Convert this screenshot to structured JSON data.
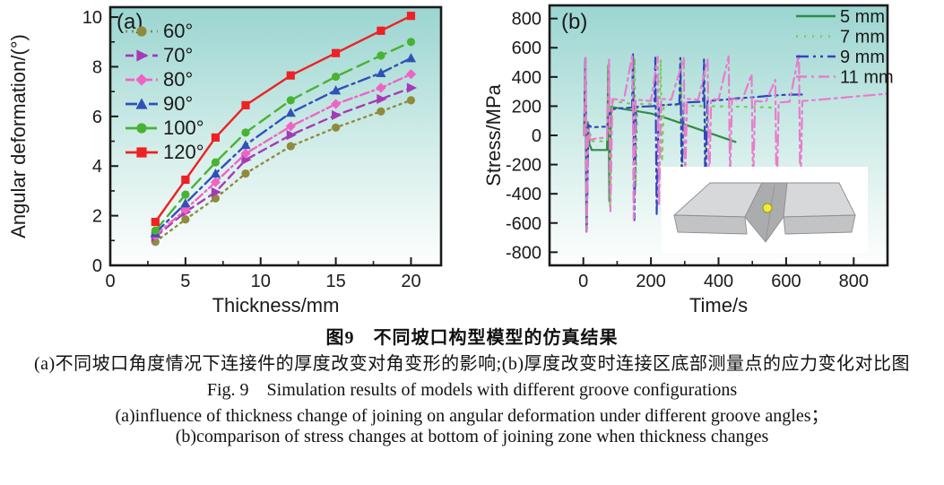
{
  "figure": {
    "caption_zh_title": "图9　不同坡口构型模型的仿真结果",
    "caption_zh_sub": "(a)不同坡口角度情况下连接件的厚度改变对角变形的影响;(b)厚度改变时连接区底部测量点的应力变化对比图",
    "caption_en_title": "Fig. 9　Simulation results of models with different groove configurations",
    "caption_en_a": "(a)influence of thickness change of joining on angular deformation under different groove angles；",
    "caption_en_b": "(b)comparison of stress changes at bottom of joining zone when thickness changes"
  },
  "chart_data": [
    {
      "type": "line",
      "panel_label": "(a)",
      "xlabel": "Thickness/mm",
      "ylabel": "Angular deformation/(°)",
      "xlim": [
        0,
        22
      ],
      "ylim": [
        0,
        10.4
      ],
      "xticks": [
        0,
        5,
        10,
        15,
        20
      ],
      "yticks": [
        0,
        2,
        4,
        6,
        8,
        10
      ],
      "x_minor": 2.5,
      "y_minor": 1,
      "grid": false,
      "legend_position": "top-left",
      "background_gradient": {
        "top": "#9bd5d1",
        "mid": "#d7efeb",
        "bottom": "#fefefe"
      },
      "x": [
        3,
        5,
        7,
        9,
        12,
        15,
        18,
        20
      ],
      "series": [
        {
          "name": "60°",
          "color": "#8f8b3e",
          "dash": "2 5",
          "marker": "circle",
          "values": [
            0.95,
            1.85,
            2.7,
            3.7,
            4.8,
            5.55,
            6.2,
            6.65
          ]
        },
        {
          "name": "70°",
          "color": "#a53ab8",
          "dash": "9 6",
          "marker": "triangle-right",
          "values": [
            1.15,
            2.15,
            2.95,
            4.25,
            5.25,
            6.05,
            6.7,
            7.15
          ]
        },
        {
          "name": "80°",
          "color": "#ef63c5",
          "dash": "10 4 2 4",
          "marker": "diamond",
          "values": [
            1.2,
            2.25,
            3.35,
            4.5,
            5.6,
            6.5,
            7.15,
            7.7
          ]
        },
        {
          "name": "90°",
          "color": "#2f52b7",
          "dash": "13 5 3 5",
          "marker": "triangle-up",
          "values": [
            1.3,
            2.5,
            3.7,
            4.85,
            6.15,
            7.05,
            7.75,
            8.35
          ]
        },
        {
          "name": "100°",
          "color": "#49b234",
          "dash": "14 7",
          "marker": "circle",
          "values": [
            1.4,
            2.85,
            4.15,
            5.35,
            6.65,
            7.6,
            8.45,
            9.0
          ]
        },
        {
          "name": "120°",
          "color": "#ee2124",
          "dash": "",
          "marker": "square",
          "values": [
            1.75,
            3.45,
            5.15,
            6.45,
            7.65,
            8.55,
            9.45,
            10.05
          ]
        }
      ]
    },
    {
      "type": "line",
      "panel_label": "(b)",
      "xlabel": "Time/s",
      "ylabel": "Stress/MPa",
      "xlim": [
        -100,
        900
      ],
      "ylim": [
        -890,
        890
      ],
      "xticks": [
        0,
        200,
        400,
        600,
        800
      ],
      "yticks": [
        -800,
        -600,
        -400,
        -200,
        0,
        200,
        400,
        600,
        800
      ],
      "x_minor": 100,
      "grid": false,
      "legend_position": "top-right",
      "background_gradient": {
        "top": "#9bd5d1",
        "mid": "#d7efeb",
        "bottom": "#fefefe"
      },
      "inset": "groove-model-with-measure-point",
      "series": [
        {
          "name": "5 mm",
          "color": "#2f8b44",
          "dash": "",
          "marker": "",
          "points": [
            [
              2,
              0
            ],
            [
              6,
              530
            ],
            [
              9,
              -660
            ],
            [
              13,
              90
            ],
            [
              18,
              -60
            ],
            [
              25,
              -100
            ],
            [
              70,
              -100
            ],
            [
              74,
              480
            ],
            [
              77,
              -450
            ],
            [
              82,
              195
            ],
            [
              120,
              180
            ],
            [
              160,
              165
            ],
            [
              200,
              150
            ],
            [
              250,
              115
            ],
            [
              300,
              75
            ],
            [
              350,
              35
            ],
            [
              400,
              -5
            ],
            [
              450,
              -45
            ]
          ]
        },
        {
          "name": "7 mm",
          "color": "#77cd57",
          "dash": "2 7",
          "marker": "",
          "points": [
            [
              3,
              0
            ],
            [
              7,
              520
            ],
            [
              10,
              -640
            ],
            [
              15,
              60
            ],
            [
              25,
              -40
            ],
            [
              70,
              -40
            ],
            [
              76,
              500
            ],
            [
              79,
              -500
            ],
            [
              85,
              235
            ],
            [
              148,
              215
            ],
            [
              152,
              530
            ],
            [
              155,
              -350
            ],
            [
              160,
              215
            ],
            [
              226,
              215
            ],
            [
              229,
              520
            ],
            [
              233,
              -180
            ],
            [
              238,
              210
            ],
            [
              286,
              205
            ],
            [
              289,
              510
            ],
            [
              293,
              -220
            ],
            [
              298,
              205
            ],
            [
              355,
              200
            ],
            [
              358,
              495
            ],
            [
              362,
              -140
            ],
            [
              368,
              200
            ],
            [
              420,
              198
            ],
            [
              480,
              195
            ],
            [
              560,
              190
            ]
          ]
        },
        {
          "name": "9 mm",
          "color": "#3243c0",
          "dash": "14 5 3 5 3 5",
          "marker": "",
          "points": [
            [
              3,
              0
            ],
            [
              6,
              530
            ],
            [
              10,
              -650
            ],
            [
              15,
              70
            ],
            [
              25,
              55
            ],
            [
              70,
              60
            ],
            [
              80,
              175
            ],
            [
              100,
              185
            ],
            [
              144,
              190
            ],
            [
              147,
              560
            ],
            [
              151,
              -580
            ],
            [
              156,
              195
            ],
            [
              210,
              200
            ],
            [
              213,
              540
            ],
            [
              217,
              -540
            ],
            [
              223,
              205
            ],
            [
              284,
              215
            ],
            [
              287,
              530
            ],
            [
              291,
              -300
            ],
            [
              297,
              225
            ],
            [
              354,
              230
            ],
            [
              357,
              520
            ],
            [
              361,
              -430
            ],
            [
              367,
              235
            ],
            [
              420,
              245
            ],
            [
              460,
              255
            ],
            [
              500,
              260
            ],
            [
              545,
              270
            ],
            [
              600,
              278
            ],
            [
              655,
              280
            ]
          ]
        },
        {
          "name": "11 mm",
          "color": "#e87ccc",
          "dash": "12 5 3 5",
          "marker": "",
          "points": [
            [
              3,
              0
            ],
            [
              7,
              530
            ],
            [
              10,
              -660
            ],
            [
              14,
              40
            ],
            [
              20,
              -30
            ],
            [
              40,
              -20
            ],
            [
              70,
              -15
            ],
            [
              76,
              520
            ],
            [
              80,
              -520
            ],
            [
              86,
              250
            ],
            [
              120,
              240
            ],
            [
              145,
              555
            ],
            [
              149,
              -570
            ],
            [
              155,
              245
            ],
            [
              200,
              235
            ],
            [
              220,
              540
            ],
            [
              224,
              -480
            ],
            [
              230,
              250
            ],
            [
              260,
              245
            ],
            [
              297,
              530
            ],
            [
              301,
              -350
            ],
            [
              307,
              250
            ],
            [
              340,
              245
            ],
            [
              368,
              520
            ],
            [
              372,
              -450
            ],
            [
              378,
              250
            ],
            [
              400,
              245
            ],
            [
              430,
              540
            ],
            [
              434,
              -300
            ],
            [
              440,
              250
            ],
            [
              470,
              240
            ],
            [
              498,
              420
            ],
            [
              502,
              -380
            ],
            [
              508,
              235
            ],
            [
              540,
              230
            ],
            [
              568,
              380
            ],
            [
              572,
              -480
            ],
            [
              578,
              225
            ],
            [
              610,
              230
            ],
            [
              638,
              560
            ],
            [
              642,
              -420
            ],
            [
              648,
              235
            ],
            [
              700,
              245
            ],
            [
              750,
              255
            ],
            [
              800,
              265
            ],
            [
              850,
              275
            ],
            [
              900,
              285
            ]
          ]
        }
      ]
    }
  ]
}
